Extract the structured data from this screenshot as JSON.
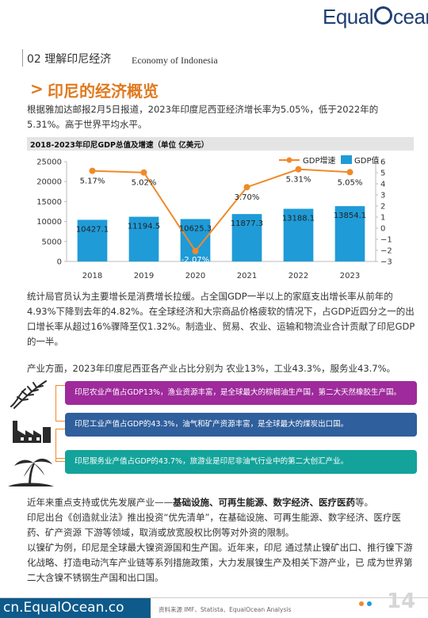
{
  "brand": {
    "logo_prefix": "Equal",
    "logo_suffix": "cean"
  },
  "section": {
    "title": "02 理解印尼经济",
    "title_en": "Economy of Indonesia"
  },
  "heading": {
    "marker": ">",
    "text": "印尼的经济概览"
  },
  "intro": "根据雅加达邮报2月5日报道，2023年印度尼西亚经济增长率为5.05%，低于2022年的5.31%。高于世界平均水平。",
  "chart_title": "2018-2023年印尼GDP总值及增速（单位  亿美元）",
  "chart_data": {
    "type": "bar",
    "categories": [
      "2018",
      "2019",
      "2020",
      "2021",
      "2022",
      "2023"
    ],
    "series": [
      {
        "name": "GDP值",
        "type": "bar",
        "axis": "left",
        "values": [
          10427.1,
          11194.5,
          10625.3,
          11877.3,
          13188.1,
          13854.1
        ],
        "labels": [
          "10427.1",
          "11194.5",
          "10625.3",
          "11877.3",
          "13188.1",
          "13854.1"
        ],
        "color": "#1f9bd7"
      },
      {
        "name": "GDP增速",
        "type": "line",
        "axis": "right",
        "values": [
          5.17,
          5.02,
          -2.07,
          3.7,
          5.31,
          5.05
        ],
        "labels": [
          "5.17%",
          "5.02%",
          "-2.07%",
          "3.70%",
          "5.31%",
          "5.05%"
        ],
        "color": "#f08a2a"
      }
    ],
    "y_left": {
      "min": 0,
      "max": 25000,
      "ticks": [
        0,
        5000,
        10000,
        15000,
        20000,
        25000
      ]
    },
    "y_right": {
      "min": -3,
      "max": 6,
      "ticks": [
        -3,
        -2,
        -1,
        0,
        1,
        2,
        3,
        4,
        5,
        6
      ]
    },
    "legend": "top-right",
    "grid": false
  },
  "paragraph2": "统计局官员认为主要增长是消费增长拉缓。占全国GDP一半以上的家庭支出增长率从前年的4.93%下降到去年的4.82%。在全球经济和大宗商品价格疲软的情况下，占GDP近四分之一的出口增长率从超过16%骤降至仅1.32%。制造业、贸易、农业、运输和物流业合计贡献了印尼GDP的一半。",
  "industry": "产业方面，2023年印度尼西亚各产业占比分别为  农业13%，工业43.3%，服务业43.7%。",
  "boxes": {
    "agri": "印尼农业产值占GDP13%，渔业资源丰富，是全球最大的棕榈油生产国，第二大天然橡胶生产国。",
    "ind": "印尼工业产值占GDP的43.3%，油气和矿产资源丰富，是全球最大的煤炭出口国。",
    "svc": "印尼服务业产值占GDP的43.7%，旅游业是印尼非油气行业中的第二大创汇产业。"
  },
  "policy": {
    "line1_prefix": "近年来重点支持或优先发展产业——",
    "line1_bold": "基础设施、可再生能源、数字经济、医疗医药",
    "line1_suffix": "等。",
    "p2": "印尼出台《创造就业法》推出投资“优先清单”，在基础设施、可再生能源、数字经济、医疗医药、矿产资源 下游等领域，取消或放宽股权比例等对外资的限制。",
    "p3": "以镍矿为例，印尼是全球最大镍资源国和生产国。近年来，印尼 通过禁止镍矿出口、推行镍下游化战略、打造电动汽车产业链等系列措施政策，大力发展镍生产及相关下游产业，已 成为世界第二大含镍不锈钢生产国和出口国。"
  },
  "footer": {
    "url": "cn.EqualOcean.co",
    "source": "资料来源  IMF、Statista、EqualOcean Analysis",
    "page": "14"
  }
}
